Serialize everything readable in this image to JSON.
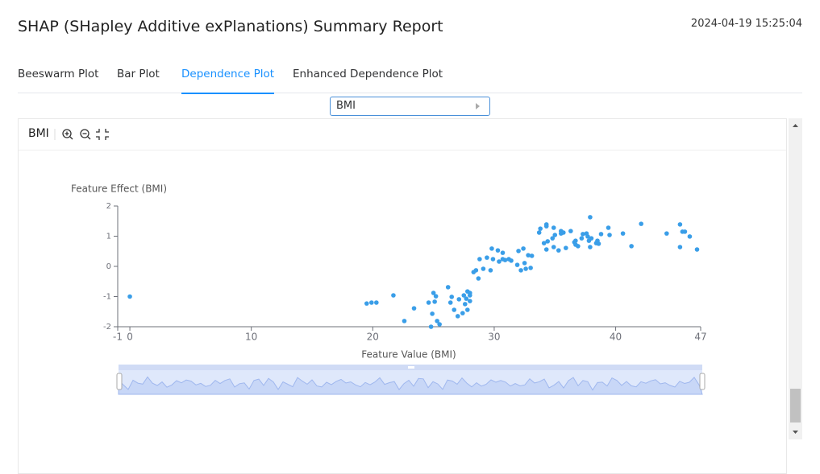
{
  "header": {
    "title": "SHAP (SHapley Additive exPlanations) Summary Report",
    "timestamp": "2024-04-19 15:25:04"
  },
  "tabs": [
    "Beeswarm Plot",
    "Bar Plot",
    "Dependence Plot",
    "Enhanced Dependence Plot"
  ],
  "active_tab": 2,
  "feature_select": "BMI",
  "panel": {
    "title": "BMI"
  },
  "chart_data": {
    "type": "scatter",
    "y_label": "Feature Effect (BMI)",
    "x_label": "Feature Value (BMI)",
    "color": "#3a9ee8",
    "xlim": [
      -1,
      47
    ],
    "xticks": [
      -1,
      0,
      10,
      20,
      30,
      40,
      47
    ],
    "ylim": [
      -2,
      2
    ],
    "yticks": [
      2,
      1,
      0,
      -1,
      -2
    ],
    "grid": false,
    "x": [
      0,
      19.5,
      19.9,
      20.3,
      21.7,
      22.6,
      23.4,
      24.6,
      24.8,
      25.0,
      25.1,
      25.2,
      24.9,
      25.3,
      25.5,
      26.2,
      26.4,
      26.5,
      26.7,
      27.0,
      27.1,
      27.4,
      27.5,
      27.6,
      27.7,
      27.8,
      27.8,
      28.0,
      28.0,
      28.0,
      28.3,
      28.5,
      28.7,
      28.8,
      29.1,
      29.4,
      29.7,
      29.8,
      29.9,
      30.3,
      30.4,
      30.7,
      30.7,
      30.9,
      31.2,
      31.4,
      31.9,
      32.0,
      32.2,
      32.4,
      32.5,
      32.6,
      32.8,
      33.0,
      33.1,
      33.7,
      33.8,
      34.1,
      34.3,
      34.3,
      34.3,
      34.4,
      34.8,
      34.9,
      34.9,
      35.0,
      35.3,
      35.5,
      35.5,
      35.7,
      35.9,
      36.3,
      36.6,
      36.7,
      36.7,
      36.9,
      37.2,
      37.3,
      37.6,
      37.7,
      37.8,
      37.9,
      37.9,
      38.0,
      38.4,
      38.5,
      38.6,
      38.8,
      39.4,
      39.5,
      40.6,
      41.3,
      42.1,
      44.2,
      45.3,
      45.3,
      45.5,
      45.7,
      46.1,
      46.7
    ],
    "values": [
      -1.0,
      -1.23,
      -1.2,
      -1.2,
      -0.96,
      -1.81,
      -1.39,
      -1.2,
      -2.0,
      -0.88,
      -1.17,
      -0.99,
      -1.57,
      -1.81,
      -1.92,
      -0.69,
      -1.2,
      -1.01,
      -1.44,
      -1.65,
      -1.09,
      -1.55,
      -0.96,
      -1.25,
      -1.07,
      -1.44,
      -0.83,
      -0.88,
      -1.15,
      -0.96,
      -0.19,
      -0.13,
      -0.4,
      0.24,
      -0.08,
      0.29,
      -0.13,
      0.59,
      0.24,
      0.53,
      0.16,
      0.24,
      0.45,
      0.21,
      0.24,
      0.19,
      0.05,
      0.51,
      -0.13,
      0.59,
      0.11,
      -0.08,
      0.37,
      -0.05,
      0.35,
      1.12,
      1.25,
      0.77,
      1.39,
      1.33,
      0.56,
      0.83,
      0.93,
      0.64,
      1.28,
      1.04,
      0.53,
      1.09,
      1.17,
      1.12,
      0.61,
      1.17,
      0.8,
      0.72,
      0.85,
      0.67,
      0.93,
      1.07,
      1.09,
      0.99,
      0.85,
      1.63,
      0.64,
      0.93,
      0.77,
      0.85,
      0.75,
      1.07,
      1.28,
      1.04,
      1.09,
      0.67,
      1.41,
      1.09,
      1.39,
      0.64,
      1.15,
      1.15,
      0.99,
      0.56
    ]
  }
}
